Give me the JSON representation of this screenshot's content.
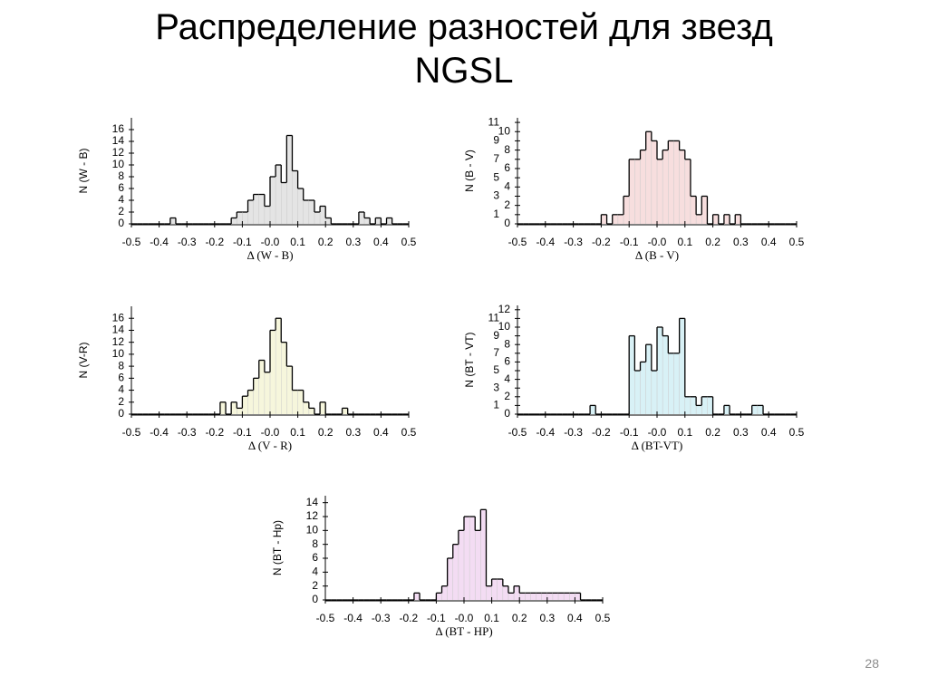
{
  "title": "Распределение разностей для звезд NGSL",
  "page_number": "28",
  "chart_data": [
    {
      "type": "histogram",
      "xlabel": "Δ (W - B)",
      "ylabel": "N (W - B)",
      "color": "#e4e4e4",
      "bins": [
        -0.5,
        -0.48,
        -0.46,
        -0.44,
        -0.42,
        -0.4,
        -0.38,
        -0.36,
        -0.34,
        -0.32,
        -0.3,
        -0.28,
        -0.26,
        -0.24,
        -0.22,
        -0.2,
        -0.18,
        -0.16,
        -0.14,
        -0.12,
        -0.1,
        -0.08,
        -0.06,
        -0.04,
        -0.02,
        0,
        0.02,
        0.04,
        0.06,
        0.08,
        0.1,
        0.12,
        0.14,
        0.16,
        0.18,
        0.2,
        0.22,
        0.24,
        0.26,
        0.28,
        0.3,
        0.32,
        0.34,
        0.36,
        0.38,
        0.4,
        0.42,
        0.44,
        0.46,
        0.48,
        0.5
      ],
      "counts": [
        0,
        0,
        0,
        0,
        0,
        0,
        0,
        1,
        0,
        0,
        0,
        0,
        0,
        0,
        0,
        0,
        0,
        0,
        1,
        2,
        2,
        4,
        5,
        5,
        3,
        8,
        10,
        7,
        15,
        9,
        6,
        4,
        4,
        2,
        3,
        1,
        0,
        0,
        0,
        0,
        0,
        2,
        1,
        0,
        1,
        0,
        1,
        0,
        0,
        0
      ],
      "xlim": [
        -0.5,
        0.5
      ],
      "ylim": [
        0,
        18
      ],
      "xticks": [
        -0.5,
        -0.4,
        -0.3,
        -0.2,
        -0.1,
        {
          "value": 0,
          "label": "-0.0"
        },
        0.1,
        0.2,
        0.3,
        0.4,
        0.5
      ],
      "yticks": [
        0,
        2,
        4,
        6,
        8,
        10,
        12,
        14,
        16
      ]
    },
    {
      "type": "histogram",
      "xlabel": "Δ (B - V)",
      "ylabel": "N (B - V)",
      "color": "#f7dede",
      "bins": [
        -0.5,
        -0.48,
        -0.46,
        -0.44,
        -0.42,
        -0.4,
        -0.38,
        -0.36,
        -0.34,
        -0.32,
        -0.3,
        -0.28,
        -0.26,
        -0.24,
        -0.22,
        -0.2,
        -0.18,
        -0.16,
        -0.14,
        -0.12,
        -0.1,
        -0.08,
        -0.06,
        -0.04,
        -0.02,
        0,
        0.02,
        0.04,
        0.06,
        0.08,
        0.1,
        0.12,
        0.14,
        0.16,
        0.18,
        0.2,
        0.22,
        0.24,
        0.26,
        0.28,
        0.3,
        0.32,
        0.34,
        0.36,
        0.38,
        0.4,
        0.42,
        0.44,
        0.46,
        0.48,
        0.5
      ],
      "counts": [
        0,
        0,
        0,
        0,
        0,
        0,
        0,
        0,
        0,
        0,
        0,
        0,
        0,
        0,
        0,
        1,
        0,
        1,
        1,
        3,
        7,
        7,
        8,
        10,
        9,
        7,
        8,
        9,
        9,
        8,
        7,
        3,
        1,
        3,
        0,
        1,
        0,
        1,
        0,
        1,
        0,
        0,
        0,
        0,
        0,
        0,
        0,
        0,
        0,
        0
      ],
      "xlim": [
        -0.5,
        0.5
      ],
      "ylim": [
        0,
        11.5
      ],
      "xticks": [
        -0.5,
        -0.4,
        -0.3,
        -0.2,
        -0.1,
        {
          "value": 0,
          "label": "-0.0"
        },
        0.1,
        0.2,
        0.3,
        0.4,
        0.5
      ],
      "yticks": [
        0,
        1,
        2,
        3,
        4,
        5,
        6,
        7,
        8,
        9,
        10,
        11
      ]
    },
    {
      "type": "histogram",
      "xlabel": "Δ (V - R)",
      "ylabel": "N (V-R)",
      "color": "#f6f6dc",
      "bins": [
        -0.5,
        -0.48,
        -0.46,
        -0.44,
        -0.42,
        -0.4,
        -0.38,
        -0.36,
        -0.34,
        -0.32,
        -0.3,
        -0.28,
        -0.26,
        -0.24,
        -0.22,
        -0.2,
        -0.18,
        -0.16,
        -0.14,
        -0.12,
        -0.1,
        -0.08,
        -0.06,
        -0.04,
        -0.02,
        0,
        0.02,
        0.04,
        0.06,
        0.08,
        0.1,
        0.12,
        0.14,
        0.16,
        0.18,
        0.2,
        0.22,
        0.24,
        0.26,
        0.28,
        0.3,
        0.32,
        0.34,
        0.36,
        0.38,
        0.4,
        0.42,
        0.44,
        0.46,
        0.48,
        0.5
      ],
      "counts": [
        0,
        0,
        0,
        0,
        0,
        0,
        0,
        0,
        0,
        0,
        0,
        0,
        0,
        0,
        0,
        0,
        2,
        0,
        2,
        1,
        3,
        4,
        6,
        9,
        7,
        14,
        16,
        12,
        8,
        4,
        4,
        2,
        1,
        0,
        2,
        0,
        0,
        0,
        1,
        0,
        0,
        0,
        0,
        0,
        0,
        0,
        0,
        0,
        0,
        0
      ],
      "xlim": [
        -0.5,
        0.5
      ],
      "ylim": [
        0,
        18
      ],
      "xticks": [
        -0.5,
        -0.4,
        -0.3,
        -0.2,
        -0.1,
        {
          "value": 0,
          "label": "-0.0"
        },
        0.1,
        0.2,
        0.3,
        0.4,
        0.5
      ],
      "yticks": [
        0,
        2,
        4,
        6,
        8,
        10,
        12,
        14,
        16
      ]
    },
    {
      "type": "histogram",
      "xlabel": "Δ (BT-VT)",
      "ylabel": "N (BT - VT)",
      "color": "#d8f1f6",
      "bins": [
        -0.5,
        -0.48,
        -0.46,
        -0.44,
        -0.42,
        -0.4,
        -0.38,
        -0.36,
        -0.34,
        -0.32,
        -0.3,
        -0.28,
        -0.26,
        -0.24,
        -0.22,
        -0.2,
        -0.18,
        -0.16,
        -0.14,
        -0.12,
        -0.1,
        -0.08,
        -0.06,
        -0.04,
        -0.02,
        0,
        0.02,
        0.04,
        0.06,
        0.08,
        0.1,
        0.12,
        0.14,
        0.16,
        0.18,
        0.2,
        0.22,
        0.24,
        0.26,
        0.28,
        0.3,
        0.32,
        0.34,
        0.36,
        0.38,
        0.4,
        0.42,
        0.44,
        0.46,
        0.48,
        0.5
      ],
      "counts": [
        0,
        0,
        0,
        0,
        0,
        0,
        0,
        0,
        0,
        0,
        0,
        0,
        0,
        1,
        0,
        0,
        0,
        0,
        0,
        0,
        9,
        5,
        6,
        8,
        5,
        10,
        9,
        7,
        7,
        11,
        2,
        2,
        1,
        2,
        2,
        0,
        0,
        1,
        0,
        0,
        0,
        0,
        1,
        1,
        0,
        0,
        0,
        0,
        0,
        0
      ],
      "xlim": [
        -0.5,
        0.5
      ],
      "ylim": [
        0,
        12.5
      ],
      "xticks": [
        -0.5,
        -0.4,
        -0.3,
        -0.2,
        -0.1,
        {
          "value": 0,
          "label": "-0.0"
        },
        0.1,
        0.2,
        0.3,
        0.4,
        0.5
      ],
      "yticks": [
        0,
        1,
        2,
        3,
        4,
        5,
        6,
        7,
        8,
        9,
        10,
        11,
        12
      ]
    },
    {
      "type": "histogram",
      "xlabel": "Δ (BT - HP)",
      "ylabel": "N (BT - Hp)",
      "color": "#f3dcf3",
      "bins": [
        -0.5,
        -0.48,
        -0.46,
        -0.44,
        -0.42,
        -0.4,
        -0.38,
        -0.36,
        -0.34,
        -0.32,
        -0.3,
        -0.28,
        -0.26,
        -0.24,
        -0.22,
        -0.2,
        -0.18,
        -0.16,
        -0.14,
        -0.12,
        -0.1,
        -0.08,
        -0.06,
        -0.04,
        -0.02,
        0,
        0.02,
        0.04,
        0.06,
        0.08,
        0.1,
        0.12,
        0.14,
        0.16,
        0.18,
        0.2,
        0.22,
        0.24,
        0.26,
        0.28,
        0.3,
        0.32,
        0.34,
        0.36,
        0.38,
        0.4,
        0.42,
        0.44,
        0.46,
        0.48,
        0.5
      ],
      "counts": [
        0,
        0,
        0,
        0,
        0,
        0,
        0,
        0,
        0,
        0,
        0,
        0,
        0,
        0,
        0,
        0,
        1,
        0,
        0,
        0,
        1,
        2,
        6,
        8,
        10,
        12,
        12,
        10,
        13,
        2,
        3,
        3,
        2,
        1,
        2,
        1,
        1,
        1,
        1,
        1,
        1,
        1,
        1,
        1,
        1,
        1,
        0,
        0,
        0,
        0
      ],
      "xlim": [
        -0.5,
        0.5
      ],
      "ylim": [
        0,
        15
      ],
      "xticks": [
        -0.5,
        -0.4,
        -0.3,
        -0.2,
        -0.1,
        {
          "value": 0,
          "label": "-0.0"
        },
        0.1,
        0.2,
        0.3,
        0.4,
        0.5
      ],
      "yticks": [
        0,
        2,
        4,
        6,
        8,
        10,
        12,
        14
      ]
    }
  ]
}
